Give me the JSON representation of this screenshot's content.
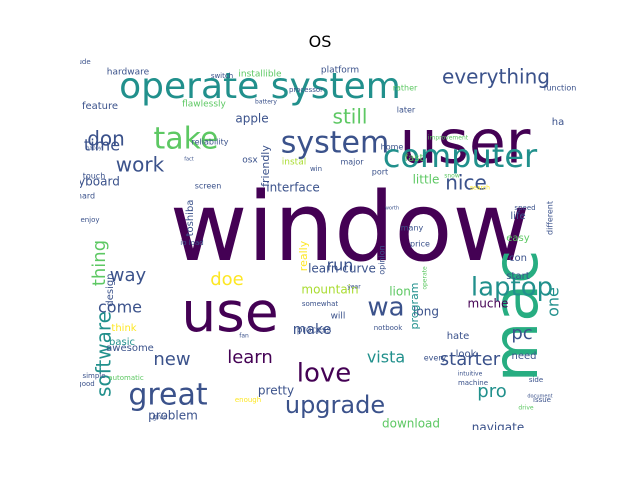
{
  "chart_data": {
    "type": "wordcloud",
    "title": "OS",
    "palette": [
      "#440154",
      "#3b528b",
      "#21908c",
      "#27ad81",
      "#5dc863",
      "#aadc32",
      "#fde725"
    ],
    "words": [
      {
        "text": "window",
        "weight": 95,
        "color": "#440154"
      },
      {
        "text": "user",
        "weight": 60,
        "color": "#440154"
      },
      {
        "text": "mac",
        "weight": 62,
        "color": "#27ad81",
        "rotate": true
      },
      {
        "text": "use",
        "weight": 55,
        "color": "#440154"
      },
      {
        "text": "operate system",
        "weight": 36,
        "color": "#21908c"
      },
      {
        "text": "computer",
        "weight": 32,
        "color": "#21908c"
      },
      {
        "text": "take",
        "weight": 30,
        "color": "#5dc863"
      },
      {
        "text": "system",
        "weight": 30,
        "color": "#3b528b"
      },
      {
        "text": "great",
        "weight": 30,
        "color": "#3b528b"
      },
      {
        "text": "laptop",
        "weight": 26,
        "color": "#21908c"
      },
      {
        "text": "upgrade",
        "weight": 24,
        "color": "#3b528b"
      },
      {
        "text": "love",
        "weight": 26,
        "color": "#440154"
      },
      {
        "text": "wa",
        "weight": 26,
        "color": "#3b528b"
      },
      {
        "text": "everything",
        "weight": 20,
        "color": "#3b528b"
      },
      {
        "text": "still",
        "weight": 20,
        "color": "#5dc863"
      },
      {
        "text": "work",
        "weight": 20,
        "color": "#3b528b"
      },
      {
        "text": "don",
        "weight": 20,
        "color": "#3b528b"
      },
      {
        "text": "nice",
        "weight": 20,
        "color": "#3b528b"
      },
      {
        "text": "software",
        "weight": 20,
        "color": "#21908c",
        "rotate": true
      },
      {
        "text": "thing",
        "weight": 18,
        "color": "#5dc863",
        "rotate": true
      },
      {
        "text": "way",
        "weight": 18,
        "color": "#3b528b"
      },
      {
        "text": "doe",
        "weight": 18,
        "color": "#fde725"
      },
      {
        "text": "learn",
        "weight": 18,
        "color": "#440154"
      },
      {
        "text": "new",
        "weight": 18,
        "color": "#3b528b"
      },
      {
        "text": "starter",
        "weight": 18,
        "color": "#3b528b"
      },
      {
        "text": "pro",
        "weight": 18,
        "color": "#21908c"
      },
      {
        "text": "pc",
        "weight": 18,
        "color": "#3b528b"
      },
      {
        "text": "come",
        "weight": 16,
        "color": "#3b528b"
      },
      {
        "text": "time",
        "weight": 16,
        "color": "#3b528b"
      },
      {
        "text": "run",
        "weight": 16,
        "color": "#3b528b"
      },
      {
        "text": "vista",
        "weight": 16,
        "color": "#21908c"
      },
      {
        "text": "make",
        "weight": 14,
        "color": "#3b528b"
      },
      {
        "text": "one",
        "weight": 16,
        "color": "#21908c",
        "rotate": true
      },
      {
        "text": "apple",
        "weight": 12,
        "color": "#3b528b"
      },
      {
        "text": "keyboard",
        "weight": 12,
        "color": "#3b528b"
      },
      {
        "text": "interface",
        "weight": 12,
        "color": "#3b528b"
      },
      {
        "text": "little",
        "weight": 12,
        "color": "#5dc863"
      },
      {
        "text": "mountain",
        "weight": 12,
        "color": "#aadc32"
      },
      {
        "text": "lion",
        "weight": 12,
        "color": "#5dc863"
      },
      {
        "text": "learn curve",
        "weight": 12,
        "color": "#3b528b"
      },
      {
        "text": "long",
        "weight": 12,
        "color": "#3b528b"
      },
      {
        "text": "muche",
        "weight": 12,
        "color": "#440154"
      },
      {
        "text": "pretty",
        "weight": 12,
        "color": "#3b528b"
      },
      {
        "text": "problem",
        "weight": 12,
        "color": "#3b528b"
      },
      {
        "text": "download",
        "weight": 12,
        "color": "#5dc863"
      },
      {
        "text": "navigate",
        "weight": 12,
        "color": "#3b528b"
      },
      {
        "text": "program",
        "weight": 11,
        "color": "#21908c",
        "rotate": true
      },
      {
        "text": "friendly",
        "weight": 11,
        "color": "#3b528b",
        "rotate": true
      },
      {
        "text": "really",
        "weight": 11,
        "color": "#fde725",
        "rotate": true
      },
      {
        "text": "design",
        "weight": 10,
        "color": "#3b528b",
        "rotate": true
      },
      {
        "text": "feature",
        "weight": 10,
        "color": "#3b528b"
      },
      {
        "text": "hardware",
        "weight": 9,
        "color": "#3b528b"
      },
      {
        "text": "installible",
        "weight": 9,
        "color": "#5dc863"
      },
      {
        "text": "platform",
        "weight": 9,
        "color": "#3b528b"
      },
      {
        "text": "flawlessly",
        "weight": 9,
        "color": "#5dc863"
      },
      {
        "text": "osx",
        "weight": 9,
        "color": "#3b528b"
      },
      {
        "text": "instal",
        "weight": 9,
        "color": "#aadc32"
      },
      {
        "text": "fast",
        "weight": 10,
        "color": "#5dc863"
      },
      {
        "text": "easy",
        "weight": 10,
        "color": "#5dc863"
      },
      {
        "text": "life",
        "weight": 10,
        "color": "#3b528b"
      },
      {
        "text": "con",
        "weight": 10,
        "color": "#3b528b"
      },
      {
        "text": "start",
        "weight": 10,
        "color": "#3b528b"
      },
      {
        "text": "hate",
        "weight": 10,
        "color": "#3b528b"
      },
      {
        "text": "look",
        "weight": 10,
        "color": "#3b528b"
      },
      {
        "text": "need",
        "weight": 10,
        "color": "#3b528b"
      },
      {
        "text": "think",
        "weight": 10,
        "color": "#fde725"
      },
      {
        "text": "awesome",
        "weight": 10,
        "color": "#3b528b"
      },
      {
        "text": "basic",
        "weight": 10,
        "color": "#21908c"
      },
      {
        "text": "toshiba",
        "weight": 10,
        "color": "#3b528b",
        "rotate": true
      },
      {
        "text": "will",
        "weight": 9,
        "color": "#3b528b"
      },
      {
        "text": "process",
        "weight": 9,
        "color": "#3b528b"
      },
      {
        "text": "touch",
        "weight": 8,
        "color": "#3b528b"
      },
      {
        "text": "hard",
        "weight": 8,
        "color": "#3b528b"
      },
      {
        "text": "screen",
        "weight": 8,
        "color": "#3b528b"
      },
      {
        "text": "reliability",
        "weight": 8,
        "color": "#3b528b"
      },
      {
        "text": "major",
        "weight": 8,
        "color": "#3b528b"
      },
      {
        "text": "function",
        "weight": 8,
        "color": "#3b528b"
      },
      {
        "text": "rather",
        "weight": 8,
        "color": "#5dc863"
      },
      {
        "text": "later",
        "weight": 8,
        "color": "#3b528b"
      },
      {
        "text": "home",
        "weight": 8,
        "color": "#3b528b"
      },
      {
        "text": "port",
        "weight": 8,
        "color": "#3b528b"
      },
      {
        "text": "opinion",
        "weight": 8,
        "color": "#3b528b",
        "rotate": true
      },
      {
        "text": "many",
        "weight": 8,
        "color": "#3b528b"
      },
      {
        "text": "price",
        "weight": 8,
        "color": "#3b528b"
      },
      {
        "text": "every",
        "weight": 8,
        "color": "#3b528b"
      },
      {
        "text": "notbook",
        "weight": 7,
        "color": "#3b528b"
      },
      {
        "text": "different",
        "weight": 8,
        "color": "#3b528b",
        "rotate": true
      },
      {
        "text": "machine",
        "weight": 7,
        "color": "#3b528b"
      },
      {
        "text": "side",
        "weight": 7,
        "color": "#3b528b"
      },
      {
        "text": "issue",
        "weight": 7,
        "color": "#3b528b"
      },
      {
        "text": "trackpad",
        "weight": 7,
        "color": "#3b528b"
      },
      {
        "text": "enough",
        "weight": 7,
        "color": "#fde725"
      },
      {
        "text": "simple",
        "weight": 7,
        "color": "#3b528b"
      },
      {
        "text": "automatic",
        "weight": 7,
        "color": "#5dc863"
      },
      {
        "text": "good",
        "weight": 7,
        "color": "#3b528b"
      },
      {
        "text": "give",
        "weight": 7,
        "color": "#3b528b"
      },
      {
        "text": "include",
        "weight": 7,
        "color": "#3b528b"
      },
      {
        "text": "switch",
        "weight": 7,
        "color": "#3b528b"
      },
      {
        "text": "enjoy",
        "weight": 7,
        "color": "#3b528b"
      },
      {
        "text": "io load",
        "weight": 7,
        "color": "#3b528b"
      },
      {
        "text": "ha",
        "weight": 10,
        "color": "#3b528b"
      },
      {
        "text": "speed",
        "weight": 7,
        "color": "#3b528b"
      },
      {
        "text": "improvement",
        "weight": 6,
        "color": "#5dc863"
      },
      {
        "text": "win",
        "weight": 7,
        "color": "#3b528b"
      },
      {
        "text": "somewhat",
        "weight": 7,
        "color": "#3b528b"
      },
      {
        "text": "processor",
        "weight": 7,
        "color": "#3b528b"
      },
      {
        "text": "fan",
        "weight": 6,
        "color": "#3b528b"
      },
      {
        "text": "document",
        "weight": 5,
        "color": "#3b528b"
      },
      {
        "text": "drive",
        "weight": 6,
        "color": "#5dc863"
      },
      {
        "text": "snow",
        "weight": 6,
        "color": "#5dc863"
      },
      {
        "text": "intuitive",
        "weight": 6,
        "color": "#3b528b"
      },
      {
        "text": "year",
        "weight": 6,
        "color": "#3b528b"
      },
      {
        "text": "operate",
        "weight": 6,
        "color": "#5dc863",
        "rotate": true
      },
      {
        "text": "search",
        "weight": 6,
        "color": "#fde725"
      },
      {
        "text": "battery",
        "weight": 6,
        "color": "#3b528b"
      },
      {
        "text": "happy",
        "weight": 5,
        "color": "#3b528b"
      },
      {
        "text": "worth",
        "weight": 5,
        "color": "#3b528b"
      },
      {
        "text": "fact",
        "weight": 5,
        "color": "#3b528b"
      }
    ]
  }
}
